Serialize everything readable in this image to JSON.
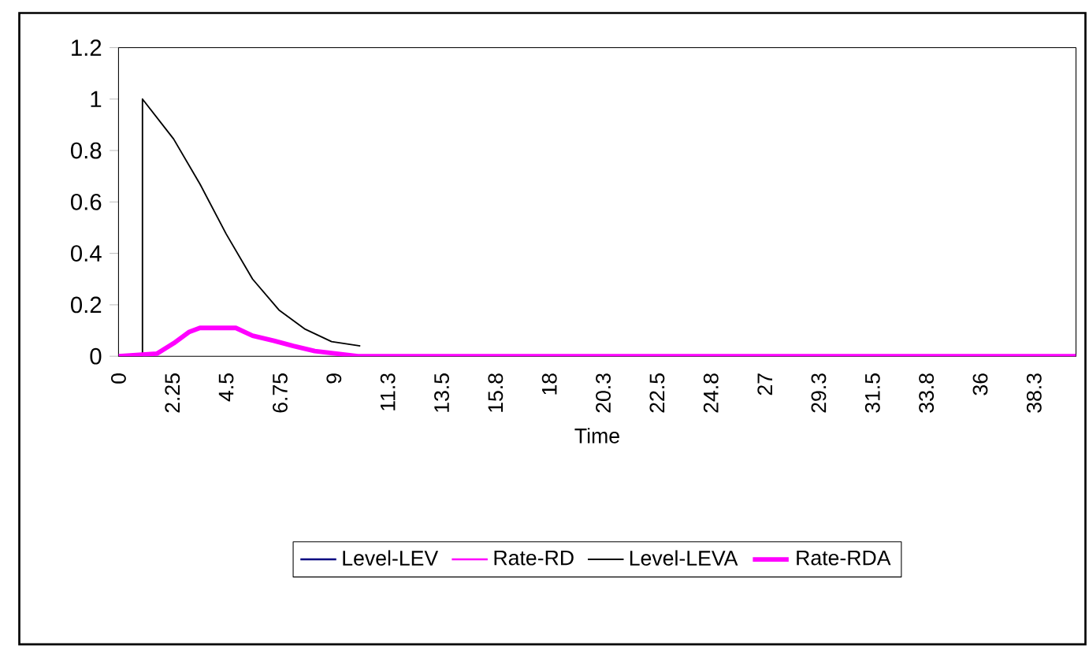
{
  "chart_data": {
    "type": "line",
    "xlabel": "Time",
    "xlim": [
      0,
      40
    ],
    "ylim": [
      0,
      1.2
    ],
    "xticks": [
      0,
      2.25,
      4.5,
      6.75,
      9,
      {
        "value": 11.25,
        "label": "11.3"
      },
      13.5,
      {
        "value": 15.75,
        "label": "15.8"
      },
      18,
      {
        "value": 20.25,
        "label": "20.3"
      },
      22.5,
      {
        "value": 24.75,
        "label": "24.8"
      },
      27,
      {
        "value": 29.25,
        "label": "29.3"
      },
      31.5,
      {
        "value": 33.75,
        "label": "33.8"
      },
      36,
      {
        "value": 38.25,
        "label": "38.3"
      }
    ],
    "yticks": [
      0,
      0.2,
      0.4,
      0.6,
      0.8,
      1,
      1.2
    ],
    "grid": false,
    "legend": "bottom",
    "marker": "none",
    "line_style": "solid",
    "series": [
      {
        "name": "Level-LEV",
        "color": "#000080"
      },
      {
        "name": "Rate-RD",
        "color": "#ff00ff"
      },
      {
        "name": "Level-LEVA",
        "color": "#000000",
        "x": [
          0,
          1,
          1,
          2.3,
          3.4,
          4.5,
          5.6,
          6.7,
          7.8,
          8.9,
          10.1
        ],
        "values": [
          0,
          0,
          1,
          0.845,
          0.67,
          0.475,
          0.3,
          0.18,
          0.105,
          0.057,
          0.04
        ]
      },
      {
        "name": "Rate-RDA",
        "color": "#ff00ff",
        "x": [
          0,
          1.6,
          2.3,
          2.96,
          3.4,
          4.9,
          5.6,
          6.5,
          7.3,
          8.2,
          9.1,
          10,
          40
        ],
        "values": [
          0,
          0.01,
          0.05,
          0.095,
          0.11,
          0.11,
          0.08,
          0.06,
          0.04,
          0.02,
          0.01,
          0,
          0
        ]
      }
    ]
  }
}
